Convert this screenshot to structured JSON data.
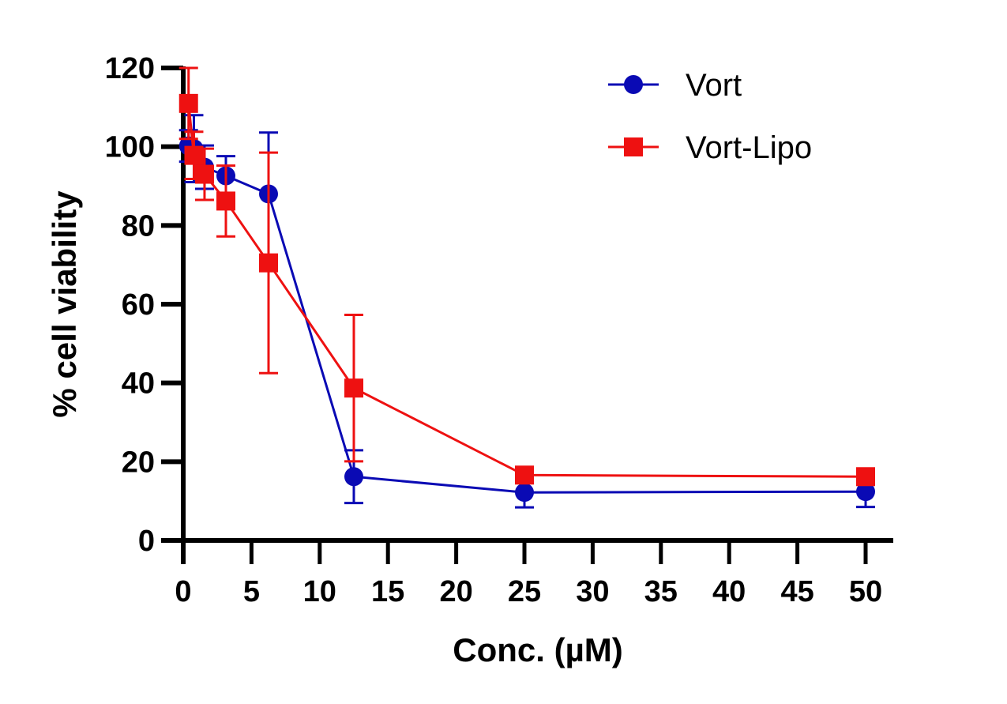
{
  "chart_data": {
    "type": "line",
    "title": "",
    "xlabel": "Conc. (µM)",
    "ylabel": "% cell viability",
    "xlim": [
      0,
      50
    ],
    "ylim": [
      0,
      120
    ],
    "xticks": [
      0,
      5,
      10,
      15,
      20,
      25,
      30,
      35,
      40,
      45,
      50
    ],
    "xtick_labels": [
      "0",
      "5",
      "10",
      "15",
      "20",
      "25",
      "30",
      "35",
      "40",
      "45",
      "50"
    ],
    "yticks": [
      0,
      20,
      40,
      60,
      80,
      100,
      120
    ],
    "ytick_labels": [
      "0",
      "20",
      "40",
      "60",
      "80",
      "100",
      "120"
    ],
    "grid": false,
    "legend_position": "top-right",
    "x": [
      0.39,
      0.78,
      1.56,
      3.125,
      6.25,
      12.5,
      25,
      50
    ],
    "series": [
      {
        "name": "Vort",
        "color": "#0a0ab4",
        "marker": "circle",
        "values": [
          100.2,
          99.5,
          94.8,
          92.6,
          88.0,
          16.2,
          12.2,
          12.4
        ],
        "error": [
          4.0,
          8.5,
          5.5,
          5.0,
          15.6,
          6.7,
          3.8,
          3.9
        ]
      },
      {
        "name": "Vort-Lipo",
        "color": "#ee1111",
        "marker": "square",
        "values": [
          111.0,
          97.8,
          93.0,
          86.2,
          70.5,
          38.7,
          16.6,
          16.2
        ],
        "error": [
          9.0,
          6.0,
          6.5,
          9.0,
          28.0,
          18.6,
          1.0,
          1.0
        ]
      }
    ]
  }
}
